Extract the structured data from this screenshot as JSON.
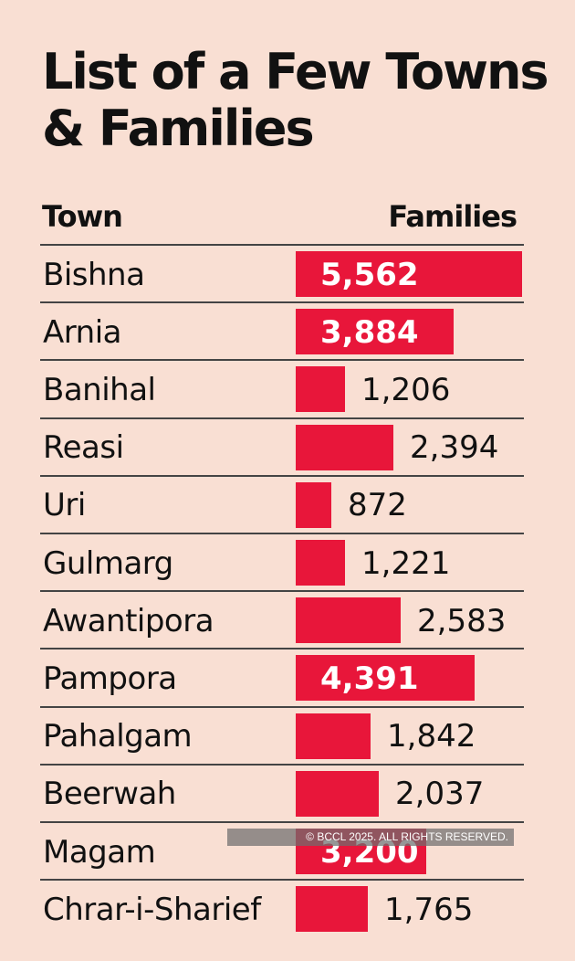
{
  "title": "List of a Few Towns & Families",
  "watermark": "© BCCL 2025. ALL RIGHTS RESERVED.",
  "colors": {
    "background": "#f9dfd3",
    "bar": "#e8163a",
    "text": "#111111"
  },
  "chart_data": {
    "type": "bar",
    "orientation": "horizontal",
    "title": "List of a Few Towns & Families",
    "column_headers": [
      "Town",
      "Families"
    ],
    "categories": [
      "Bishna",
      "Arnia",
      "Banihal",
      "Reasi",
      "Uri",
      "Gulmarg",
      "Awantipora",
      "Pampora",
      "Pahalgam",
      "Beerwah",
      "Magam",
      "Chrar-i-Sharief"
    ],
    "values": [
      5562,
      3884,
      1206,
      2394,
      872,
      1221,
      2583,
      4391,
      1842,
      2037,
      3200,
      1765
    ],
    "value_labels": [
      "5,562",
      "3,884",
      "1,206",
      "2,394",
      "872",
      "1,221",
      "2,583",
      "4,391",
      "1,842",
      "2,037",
      "3,200",
      "1,765"
    ],
    "xlim": [
      0,
      5562
    ],
    "grid": false,
    "legend": "none"
  }
}
